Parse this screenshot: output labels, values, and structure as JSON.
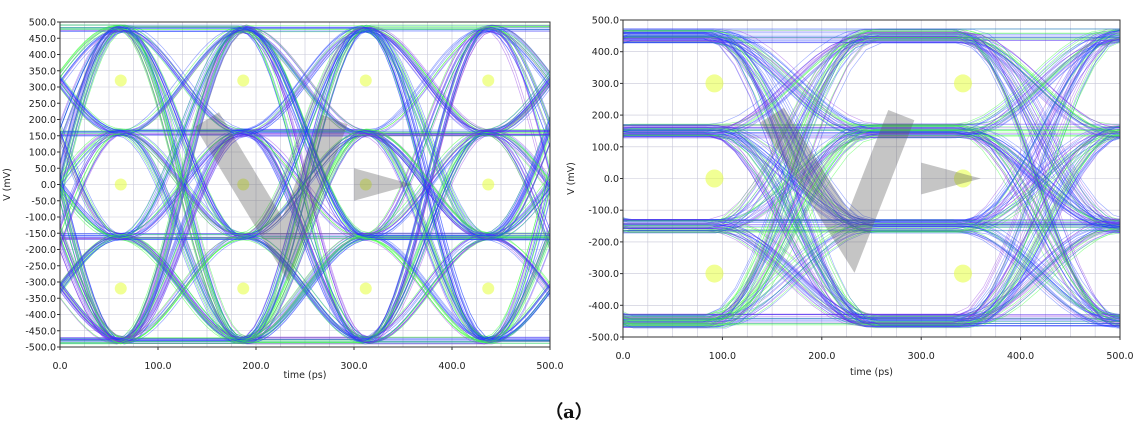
{
  "caption": "（a）",
  "colors": {
    "background": "#0018c8",
    "trace_blue": "#1a3cff",
    "trace_purple": "#8a2be2",
    "trace_green": "#3cff3c",
    "crossing_yellow": "#e6ff3c",
    "watermark": "#5a5a5a"
  },
  "chart_data": [
    {
      "type": "line",
      "title": "",
      "xlabel": "time (ps)",
      "ylabel": "V (mV)",
      "xlim": [
        0,
        500
      ],
      "ylim": [
        -500,
        500
      ],
      "xticks": [
        "0.0",
        "100.0",
        "200.0",
        "300.0",
        "400.0",
        "500.0"
      ],
      "yticks": [
        "500.0",
        "450.0",
        "400.0",
        "350.0",
        "300.0",
        "250.0",
        "200.0",
        "150.0",
        "100.0",
        "50.0",
        "0.0",
        "-50.0",
        "-100.0",
        "-150.0",
        "-200.0",
        "-250.0",
        "-300.0",
        "-350.0",
        "-400.0",
        "-450.0",
        "-500.0"
      ],
      "grid": true,
      "eye_diagram": {
        "levels_mv": [
          -480,
          -160,
          160,
          480
        ],
        "unit_interval_ps": 125,
        "crossing_times_ps": [
          62,
          187,
          312,
          437
        ],
        "trace_spread_mv": 22
      }
    },
    {
      "type": "line",
      "title": "",
      "xlabel": "time (ps)",
      "ylabel": "V (mV)",
      "xlim": [
        0,
        500
      ],
      "ylim": [
        -500,
        500
      ],
      "xticks": [
        "0.0",
        "100.0",
        "200.0",
        "300.0",
        "400.0",
        "500.0"
      ],
      "yticks": [
        "500.0",
        "400.0",
        "300.0",
        "200.0",
        "100.0",
        "0.0",
        "-100.0",
        "-200.0",
        "-300.0",
        "-400.0",
        "-500.0"
      ],
      "grid": true,
      "eye_diagram": {
        "levels_mv": [
          -450,
          -150,
          150,
          450
        ],
        "unit_interval_ps": 250,
        "crossing_times_ps": [
          92,
          342
        ],
        "trace_spread_mv": 45
      }
    }
  ]
}
